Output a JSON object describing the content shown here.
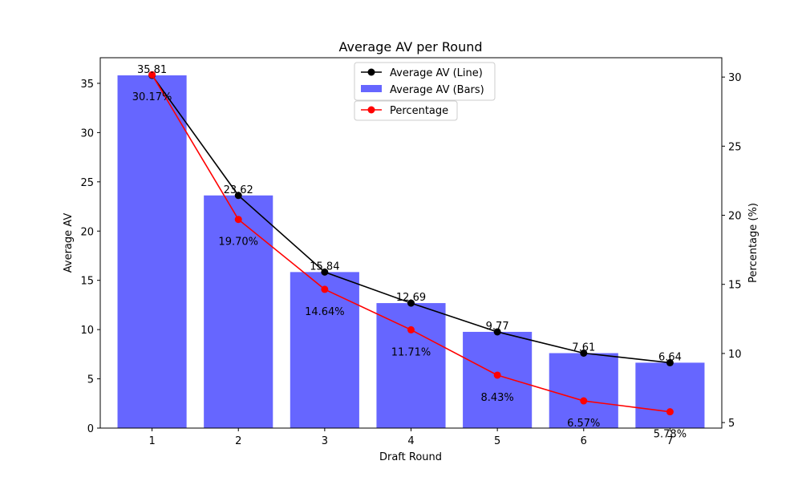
{
  "chart_data": {
    "type": "bar",
    "title": "Average AV per Round",
    "xlabel": "Draft Round",
    "ylabel": "Average AV",
    "y2label": "Percentage (%)",
    "categories": [
      "1",
      "2",
      "3",
      "4",
      "5",
      "6",
      "7"
    ],
    "ylim": [
      0,
      37.6
    ],
    "y2lim": [
      4.6,
      31.4
    ],
    "yticks": [
      0,
      5,
      10,
      15,
      20,
      25,
      30,
      35
    ],
    "y2ticks": [
      5,
      10,
      15,
      20,
      25,
      30
    ],
    "grid": false,
    "legend_position": "top-center",
    "series": [
      {
        "name": "Average AV (Bars)",
        "type": "bar",
        "axis": "left",
        "color": "#6666ff",
        "values": [
          35.81,
          23.62,
          15.84,
          12.69,
          9.77,
          7.61,
          6.64
        ],
        "labels": [
          "35.81",
          "23.62",
          "15.84",
          "12.69",
          "9.77",
          "7.61",
          "6.64"
        ]
      },
      {
        "name": "Average AV (Line)",
        "type": "line",
        "axis": "left",
        "color": "#000000",
        "values": [
          35.81,
          23.62,
          15.84,
          12.69,
          9.77,
          7.61,
          6.64
        ]
      },
      {
        "name": "Percentage",
        "type": "line",
        "axis": "right",
        "color": "#ff0000",
        "values": [
          30.17,
          19.7,
          14.64,
          11.71,
          8.43,
          6.57,
          5.78
        ],
        "labels": [
          "30.17%",
          "19.70%",
          "14.64%",
          "11.71%",
          "8.43%",
          "6.57%",
          "5.78%"
        ]
      }
    ]
  }
}
